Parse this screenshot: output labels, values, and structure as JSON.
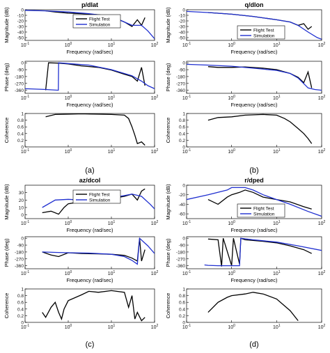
{
  "figure": {
    "panel_labels": [
      "(a)",
      "(b)",
      "(c)",
      "(d)"
    ],
    "colors": {
      "flight_test": "#000000",
      "simulation": "#1f2fd0",
      "axes": "#000000",
      "grid_text": "#111111"
    },
    "legend": {
      "flight_test": "Flight Test",
      "simulation": "Simulation"
    }
  },
  "chart_data": [
    {
      "id": "a",
      "type": "line",
      "title": "p/dlat",
      "xscale": "log",
      "xlim": [
        0.1,
        100
      ],
      "subplots": [
        {
          "kind": "magnitude",
          "xlabel": "Frequency (rad/sec)",
          "ylabel": "Magnitude (dB)",
          "ylim": [
            -55,
            0
          ],
          "yticks": [
            0,
            -10,
            -20,
            -30,
            -40,
            -50
          ],
          "legend": "top-center",
          "series": [
            {
              "name": "Flight Test",
              "x": [
                0.3,
                0.5,
                1,
                2,
                5,
                10,
                20,
                30,
                40,
                50,
                60
              ],
              "y": [
                -2,
                -4,
                -6,
                -7,
                -9,
                -12,
                -22,
                -30,
                -18,
                -28,
                -14
              ]
            },
            {
              "name": "Simulation",
              "x": [
                0.1,
                0.3,
                1,
                3,
                10,
                20,
                30,
                50,
                70,
                100
              ],
              "y": [
                -1,
                -2,
                -4,
                -7,
                -12,
                -22,
                -28,
                -28,
                -38,
                -52
              ]
            }
          ]
        },
        {
          "kind": "phase",
          "xlabel": "Frequency (rad/sec)",
          "ylabel": "Phase (deg)",
          "ylim": [
            -400,
            20
          ],
          "yticks": [
            0,
            -90,
            -180,
            -270,
            -360
          ],
          "yticklabels": [
            "0",
            "-90",
            "-180",
            "-270",
            "-360"
          ],
          "series": [
            {
              "name": "Flight Test",
              "x": [
                0.3,
                0.35,
                0.6,
                1,
                2,
                5,
                10,
                20,
                30,
                40,
                50,
                60
              ],
              "y": [
                -360,
                0,
                -5,
                -15,
                -40,
                -60,
                -95,
                -150,
                -180,
                -240,
                -60,
                -300
              ]
            },
            {
              "name": "Simulation",
              "x": [
                0.1,
                0.3,
                0.59,
                0.6,
                1,
                3,
                10,
                30,
                50,
                70,
                100
              ],
              "y": [
                -340,
                -350,
                -360,
                0,
                -10,
                -30,
                -90,
                -170,
                -240,
                -300,
                -340
              ]
            }
          ]
        },
        {
          "kind": "coherence",
          "ylabel": "Coherence",
          "ylim": [
            0,
            1
          ],
          "yticks": [
            0,
            0.2,
            0.4,
            0.6,
            0.8,
            1
          ],
          "yticklabels": [
            "0",
            "0.2",
            "0.4",
            "0.6",
            "0.8",
            "1"
          ],
          "series": [
            {
              "name": "Flight Test",
              "x": [
                0.3,
                0.5,
                1,
                2,
                5,
                10,
                20,
                25,
                30,
                35,
                40,
                50,
                60
              ],
              "y": [
                0.9,
                0.97,
                0.98,
                0.99,
                0.98,
                0.97,
                0.95,
                0.85,
                0.6,
                0.35,
                0.1,
                0.15,
                0.05
              ]
            }
          ]
        }
      ]
    },
    {
      "id": "b",
      "type": "line",
      "title": "q/dlon",
      "xscale": "log",
      "xlim": [
        0.1,
        100
      ],
      "subplots": [
        {
          "kind": "magnitude",
          "xlabel": "Frequency (rad/sec)",
          "ylabel": "Magnitude (dB)",
          "ylim": [
            -55,
            0
          ],
          "yticks": [
            0,
            -10,
            -20,
            -30,
            -40,
            -50
          ],
          "legend": "bottom-center",
          "series": [
            {
              "name": "Flight Test",
              "x": [
                0.3,
                1,
                3,
                10,
                20,
                30,
                40,
                50,
                60
              ],
              "y": [
                -5,
                -8,
                -12,
                -18,
                -22,
                -28,
                -25,
                -35,
                -30
              ]
            },
            {
              "name": "Simulation",
              "x": [
                0.1,
                0.3,
                1,
                3,
                10,
                20,
                30,
                50,
                80,
                100
              ],
              "y": [
                -3,
                -5,
                -8,
                -12,
                -18,
                -22,
                -28,
                -40,
                -50,
                -53
              ]
            }
          ]
        },
        {
          "kind": "phase",
          "xlabel": "Frequency (rad/sec)",
          "ylabel": "Phase (deg)",
          "ylim": [
            -400,
            20
          ],
          "yticks": [
            0,
            -90,
            -180,
            -270,
            -360
          ],
          "yticklabels": [
            "0",
            "-90",
            "-180",
            "-270",
            "-360"
          ],
          "series": [
            {
              "name": "Flight Test",
              "x": [
                0.3,
                0.5,
                1,
                2,
                5,
                10,
                20,
                30,
                40,
                50,
                60
              ],
              "y": [
                -50,
                -60,
                -60,
                -55,
                -70,
                -90,
                -140,
                -190,
                -260,
                -120,
                -330
              ]
            },
            {
              "name": "Simulation",
              "x": [
                0.1,
                0.3,
                1,
                3,
                10,
                20,
                30,
                50,
                70,
                100
              ],
              "y": [
                -20,
                -30,
                -45,
                -70,
                -100,
                -140,
                -200,
                -330,
                -350,
                -360
              ]
            }
          ]
        },
        {
          "kind": "coherence",
          "ylabel": "Coherence",
          "ylim": [
            0,
            1
          ],
          "yticks": [
            0,
            0.2,
            0.4,
            0.6,
            0.8,
            1
          ],
          "yticklabels": [
            "0",
            "0.2",
            "0.4",
            "0.6",
            "0.8",
            "1"
          ],
          "series": [
            {
              "name": "Flight Test",
              "x": [
                0.3,
                0.5,
                1,
                2,
                5,
                10,
                15,
                20,
                30,
                40,
                50,
                60
              ],
              "y": [
                0.8,
                0.88,
                0.9,
                0.95,
                0.97,
                0.95,
                0.85,
                0.75,
                0.55,
                0.4,
                0.25,
                0.1
              ]
            }
          ]
        }
      ]
    },
    {
      "id": "c",
      "type": "line",
      "title": "az/dcol",
      "xscale": "log",
      "xlim": [
        0.1,
        100
      ],
      "subplots": [
        {
          "kind": "magnitude",
          "xlabel": "Frequency (rad/sec)",
          "ylabel": "Magnitude (dB)",
          "ylim": [
            -5,
            40
          ],
          "yticks": [
            0,
            10,
            20,
            30
          ],
          "legend": "top-center",
          "series": [
            {
              "name": "Flight Test",
              "x": [
                0.25,
                0.4,
                0.6,
                0.8,
                1,
                2,
                5,
                10,
                20,
                30,
                40,
                50,
                60
              ],
              "y": [
                3,
                5,
                1,
                10,
                15,
                18,
                20,
                22,
                25,
                28,
                20,
                32,
                35
              ]
            },
            {
              "name": "Simulation",
              "x": [
                0.25,
                0.5,
                1,
                2,
                5,
                10,
                20,
                30,
                50,
                80,
                100
              ],
              "y": [
                10,
                20,
                21,
                20,
                21,
                23,
                26,
                28,
                25,
                14,
                8
              ]
            }
          ]
        },
        {
          "kind": "phase",
          "xlabel": "Frequency (rad/sec)",
          "ylabel": "Phase (deg)",
          "ylim": [
            -400,
            20
          ],
          "yticks": [
            0,
            -90,
            -180,
            -270,
            -360
          ],
          "yticklabels": [
            "0",
            "-90",
            "-180",
            "-270",
            "-360"
          ],
          "series": [
            {
              "name": "Flight Test",
              "x": [
                0.25,
                0.4,
                0.6,
                1,
                2,
                5,
                10,
                20,
                30,
                40,
                45,
                50,
                60
              ],
              "y": [
                -180,
                -220,
                -240,
                -190,
                -200,
                -205,
                -210,
                -225,
                -260,
                -300,
                0,
                -300,
                -150
              ]
            },
            {
              "name": "Simulation",
              "x": [
                0.25,
                0.5,
                1,
                3,
                10,
                20,
                30,
                40,
                45,
                70,
                100
              ],
              "y": [
                -180,
                -185,
                -190,
                -195,
                -210,
                -240,
                -290,
                -340,
                0,
                -100,
                -200
              ]
            }
          ]
        },
        {
          "kind": "coherence",
          "ylabel": "Coherence",
          "ylim": [
            0,
            1
          ],
          "yticks": [
            0,
            0.2,
            0.4,
            0.6,
            0.8,
            1
          ],
          "yticklabels": [
            "0",
            "0.2",
            "0.4",
            "0.6",
            "0.8",
            "1"
          ],
          "series": [
            {
              "name": "Flight Test",
              "x": [
                0.25,
                0.3,
                0.4,
                0.5,
                0.6,
                0.7,
                0.8,
                1,
                2,
                3,
                5,
                10,
                20,
                25,
                30,
                35,
                40,
                50,
                60
              ],
              "y": [
                0.3,
                0.15,
                0.45,
                0.6,
                0.3,
                0.1,
                0.4,
                0.65,
                0.82,
                0.93,
                0.9,
                0.95,
                0.9,
                0.45,
                0.8,
                0.1,
                0.3,
                0.05,
                0.15
              ]
            }
          ]
        }
      ]
    },
    {
      "id": "d",
      "type": "line",
      "title": "r/dped",
      "xscale": "log",
      "xlim": [
        0.1,
        100
      ],
      "subplots": [
        {
          "kind": "magnitude",
          "xlabel": "Frequency (rad/sec)",
          "ylabel": "Magnitude (dB)",
          "ylim": [
            -70,
            0
          ],
          "yticks": [
            0,
            -20,
            -40,
            -60
          ],
          "legend": "bottom-center",
          "series": [
            {
              "name": "Flight Test",
              "x": [
                0.3,
                0.5,
                0.8,
                1,
                1.5,
                2,
                3,
                5,
                10,
                20,
                40,
                60
              ],
              "y": [
                -30,
                -40,
                -25,
                -20,
                -15,
                -10,
                -15,
                -25,
                -30,
                -35,
                -45,
                -50
              ]
            },
            {
              "name": "Simulation",
              "x": [
                0.1,
                0.3,
                0.8,
                1,
                2,
                3,
                5,
                10,
                20,
                50,
                100
              ],
              "y": [
                -30,
                -20,
                -10,
                -5,
                -5,
                -10,
                -20,
                -30,
                -40,
                -55,
                -65
              ]
            }
          ]
        },
        {
          "kind": "phase",
          "xlabel": "Frequency (rad/sec)",
          "ylabel": "Phase (deg)",
          "ylim": [
            -400,
            20
          ],
          "yticks": [
            0,
            -90,
            -180,
            -270,
            -360
          ],
          "yticklabels": [
            "0",
            "-90",
            "-180",
            "-270",
            "-360"
          ],
          "series": [
            {
              "name": "Flight Test",
              "x": [
                0.3,
                0.5,
                0.6,
                0.65,
                1,
                1.1,
                1.5,
                1.6,
                2,
                5,
                10,
                20,
                40,
                60
              ],
              "y": [
                -10,
                -20,
                -370,
                0,
                -360,
                0,
                -340,
                0,
                -20,
                -40,
                -60,
                -100,
                -150,
                -200
              ]
            },
            {
              "name": "Simulation",
              "x": [
                0.25,
                0.3,
                0.5,
                1,
                1.5,
                1.6,
                3,
                10,
                30,
                100
              ],
              "y": [
                -350,
                -355,
                -360,
                -360,
                -360,
                0,
                -20,
                -50,
                -100,
                -160
              ]
            }
          ]
        },
        {
          "kind": "coherence",
          "ylabel": "Coherence",
          "ylim": [
            0,
            1
          ],
          "yticks": [
            0,
            0.2,
            0.4,
            0.6,
            0.8,
            1
          ],
          "yticklabels": [
            "0",
            "0.2",
            "0.4",
            "0.6",
            "0.8",
            "1"
          ],
          "series": [
            {
              "name": "Flight Test",
              "x": [
                0.3,
                0.5,
                0.8,
                1,
                2,
                3,
                5,
                10,
                20,
                30
              ],
              "y": [
                0.3,
                0.6,
                0.75,
                0.8,
                0.85,
                0.9,
                0.85,
                0.7,
                0.35,
                0.05
              ]
            }
          ]
        }
      ]
    }
  ]
}
